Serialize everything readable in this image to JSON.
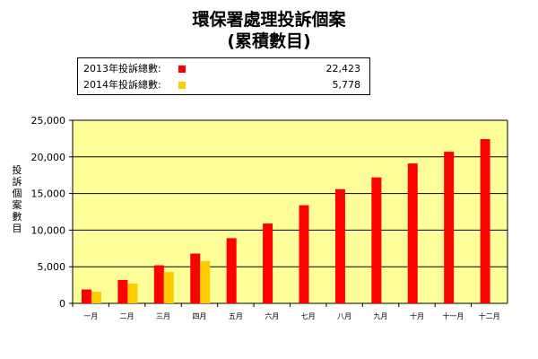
{
  "chart_data": {
    "type": "bar",
    "title": "環保署處理投訴個案",
    "subtitle": "(累積數目)",
    "ylabel": "投訴個案數目",
    "xlabel": "",
    "categories": [
      "一月",
      "二月",
      "三月",
      "四月",
      "五月",
      "六月",
      "七月",
      "八月",
      "九月",
      "十月",
      "十一月",
      "十二月"
    ],
    "series": [
      {
        "name": "2013年投訴總數:",
        "color": "#ff0000",
        "total": "22,423",
        "values": [
          1900,
          3200,
          5200,
          6800,
          8900,
          10900,
          13400,
          15600,
          17200,
          19100,
          20700,
          22423
        ]
      },
      {
        "name": "2014年投訴總數:",
        "color": "#ffcc00",
        "total": "5,778",
        "values": [
          1600,
          2700,
          4300,
          5778,
          null,
          null,
          null,
          null,
          null,
          null,
          null,
          null
        ]
      }
    ],
    "ylim": [
      0,
      25000
    ],
    "yticks": [
      "0",
      "5,000",
      "10,000",
      "15,000",
      "20,000",
      "25,000"
    ],
    "grid": true,
    "legend_position": "top",
    "plot_background": "#ffff99"
  }
}
